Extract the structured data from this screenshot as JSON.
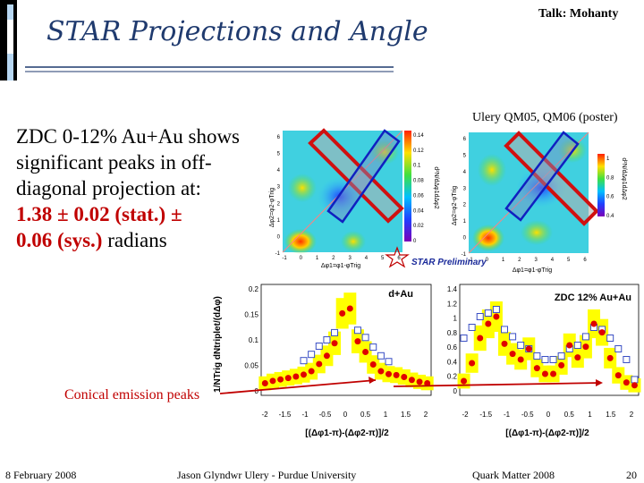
{
  "slide": {
    "title": "STAR Projections and Angle",
    "talk": "Talk: Mohanty",
    "citation": "Ulery QM05, QM06 (poster)",
    "body_text": "ZDC 0-12% Au+Au shows significant peaks in off-diagonal projection at:",
    "result_stat": "1.38 ± 0.02 (stat.) ±",
    "result_sys": "0.06 (sys.)",
    "result_unit": " radians",
    "annotation": "Conical emission peaks",
    "footer": {
      "date": "8 February 2008",
      "author": "Jason Glyndwr Ulery - Purdue University",
      "conference": "Quark Matter 2008",
      "page": "20"
    }
  },
  "figures": {
    "left_map": {
      "colorbar_ticks": [
        "0.14",
        "0.12",
        "0.1",
        "0.08",
        "0.06",
        "0.04",
        "0.02",
        "0"
      ],
      "y_ticks": [
        "6",
        "5",
        "4",
        "3",
        "2",
        "1",
        "0",
        "-1"
      ],
      "x_ticks": [
        "-1",
        "0",
        "1",
        "2",
        "3",
        "4",
        "5",
        "6"
      ],
      "x_label": "Δφ1=φ1-φTrig",
      "y_label": "Δφ2=φ2-φTrig",
      "z_label": "d²N/dΔφ1dΔφ2"
    },
    "right_map": {
      "colorbar_ticks": [
        "1",
        "0.8",
        "0.6",
        "0.4"
      ],
      "y_ticks": [
        "6",
        "5",
        "4",
        "3",
        "2",
        "1",
        "0",
        "-1"
      ],
      "x_ticks": [
        "-1",
        "0",
        "1",
        "2",
        "3",
        "4",
        "5",
        "6"
      ],
      "x_label": "Δφ1=φ1-φTrig",
      "y_label": "Δφ2=φ2-φTrig",
      "z_label": "d²N/dΔφ1dΔφ2"
    },
    "preliminary_label": "STAR Preliminary",
    "left_projection": {
      "label": "d+Au",
      "y_axis_title": "1/NTrig dNtriplet/(dΔφ)",
      "x_axis_title": "[(Δφ1-π)-(Δφ2-π)]/2",
      "y_ticks": [
        "0.2",
        "0.15",
        "0.1",
        "0.05",
        "0"
      ],
      "x_ticks": [
        "-2",
        "-1.5",
        "-1",
        "-0.5",
        "0",
        "0.5",
        "1",
        "1.5",
        "2"
      ]
    },
    "right_projection": {
      "label": "ZDC 12% Au+Au",
      "x_axis_title": "[(Δφ1-π)-(Δφ2-π)]/2",
      "y_ticks": [
        "1.4",
        "1.2",
        "1",
        "0.8",
        "0.6",
        "0.4",
        "0.2",
        "0"
      ],
      "x_ticks": [
        "-2",
        "-1.5",
        "-1",
        "-0.5",
        "0",
        "0.5",
        "1",
        "1.5",
        "2"
      ]
    },
    "colors": {
      "signal": "#e00000",
      "band": "#ffff00",
      "arrow": "#c00000",
      "open": "#3a4fc4"
    }
  },
  "chart_data": [
    {
      "type": "scatter",
      "title": "d+Au",
      "xlabel": "[(Δφ1-π)-(Δφ2-π)]/2",
      "ylabel": "1/NTrig dNtriplet/(dΔφ)",
      "xlim": [
        -2.2,
        2.2
      ],
      "ylim": [
        -0.02,
        0.21
      ],
      "series": [
        {
          "name": "signal",
          "x": [
            -2.1,
            -1.9,
            -1.7,
            -1.5,
            -1.3,
            -1.1,
            -0.9,
            -0.7,
            -0.5,
            -0.3,
            -0.1,
            0.1,
            0.3,
            0.5,
            0.7,
            0.9,
            1.1,
            1.3,
            1.5,
            1.7,
            1.9,
            2.1
          ],
          "values": [
            0.005,
            0.01,
            0.013,
            0.016,
            0.019,
            0.023,
            0.03,
            0.045,
            0.062,
            0.088,
            0.15,
            0.16,
            0.092,
            0.07,
            0.044,
            0.03,
            0.024,
            0.022,
            0.018,
            0.012,
            0.008,
            0.005
          ]
        },
        {
          "name": "reference",
          "x": [
            -1.1,
            -0.9,
            -0.7,
            -0.5,
            -0.3,
            0.3,
            0.5,
            0.7,
            0.9,
            1.1
          ],
          "values": [
            0.052,
            0.065,
            0.082,
            0.095,
            0.11,
            0.115,
            0.1,
            0.08,
            0.062,
            0.05
          ]
        }
      ]
    },
    {
      "type": "scatter",
      "title": "ZDC 12% Au+Au",
      "xlabel": "[(Δφ1-π)-(Δφ2-π)]/2",
      "ylabel": "",
      "xlim": [
        -2.2,
        2.2
      ],
      "ylim": [
        -0.1,
        1.45
      ],
      "series": [
        {
          "name": "signal",
          "x": [
            -2.1,
            -1.9,
            -1.7,
            -1.5,
            -1.3,
            -1.1,
            -0.9,
            -0.7,
            -0.5,
            -0.3,
            -0.1,
            0.1,
            0.3,
            0.5,
            0.7,
            0.9,
            1.1,
            1.3,
            1.5,
            1.7,
            1.9,
            2.1
          ],
          "values": [
            0.1,
            0.35,
            0.7,
            0.9,
            1.0,
            0.62,
            0.48,
            0.4,
            0.55,
            0.28,
            0.2,
            0.2,
            0.32,
            0.6,
            0.43,
            0.58,
            0.9,
            0.78,
            0.42,
            0.18,
            0.08,
            0.04
          ]
        },
        {
          "name": "reference",
          "x": [
            -2.1,
            -1.9,
            -1.7,
            -1.5,
            -1.3,
            -1.1,
            -0.9,
            -0.7,
            -0.5,
            -0.3,
            -0.1,
            0.1,
            0.3,
            0.5,
            0.7,
            0.9,
            1.1,
            1.3,
            1.5,
            1.7,
            1.9,
            2.1
          ],
          "values": [
            0.7,
            0.85,
            1.0,
            1.05,
            1.1,
            0.82,
            0.72,
            0.6,
            0.55,
            0.45,
            0.4,
            0.4,
            0.45,
            0.55,
            0.6,
            0.72,
            0.85,
            0.82,
            0.7,
            0.55,
            0.4,
            0.12
          ]
        }
      ]
    }
  ]
}
